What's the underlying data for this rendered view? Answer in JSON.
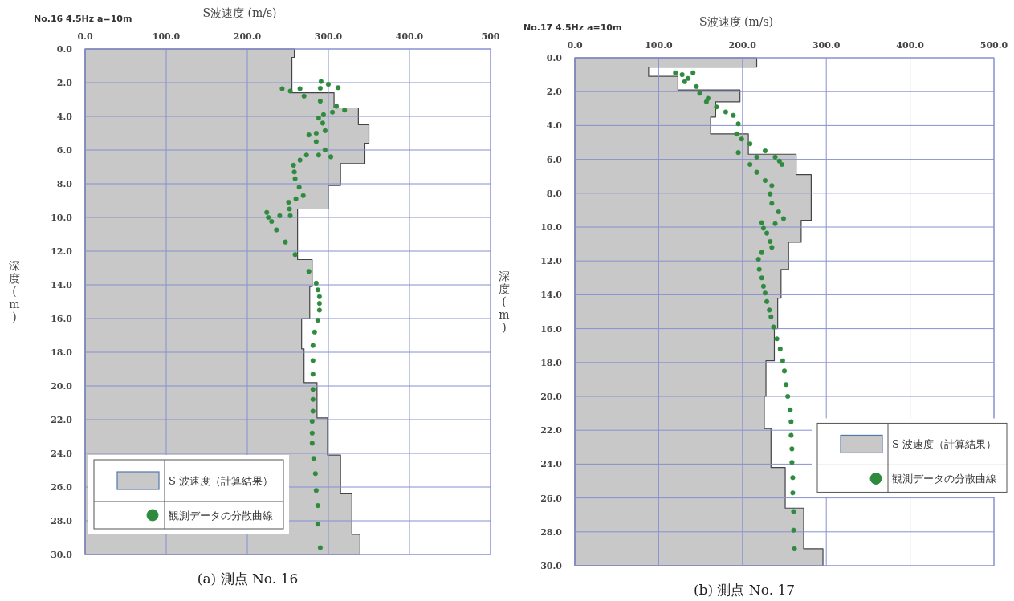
{
  "chart_data": [
    {
      "type": "area",
      "orientation": "horizontal",
      "title": "No.16 4.5Hz a=10m",
      "xlabel": "S波速度 (m/s)",
      "ylabel": "深度 (m)",
      "annotations": [
        "(a) 測点 No. 16"
      ],
      "xlim": [
        0,
        500
      ],
      "xticks": [
        {
          "value": 0,
          "label": "0.0"
        },
        {
          "value": 100,
          "label": "100.0"
        },
        {
          "value": 200,
          "label": "200.0"
        },
        {
          "value": 300,
          "label": "300.0"
        },
        {
          "value": 400,
          "label": "400.0"
        },
        500
      ],
      "ylim": [
        30,
        0
      ],
      "yticks": [
        {
          "value": 0,
          "label": "0.0"
        },
        {
          "value": 2,
          "label": "2.0"
        },
        {
          "value": 4,
          "label": "4.0"
        },
        {
          "value": 6,
          "label": "6.0"
        },
        {
          "value": 8,
          "label": "8.0"
        },
        {
          "value": 10,
          "label": "10.0"
        },
        {
          "value": 12,
          "label": "12.0"
        },
        {
          "value": 14,
          "label": "14.0"
        },
        {
          "value": 16,
          "label": "16.0"
        },
        {
          "value": 18,
          "label": "18.0"
        },
        {
          "value": 20,
          "label": "20.0"
        },
        {
          "value": 22,
          "label": "22.0"
        },
        {
          "value": 24,
          "label": "24.0"
        },
        {
          "value": 26,
          "label": "26.0"
        },
        {
          "value": 28,
          "label": "28.0"
        },
        {
          "value": 30,
          "label": "30.0"
        }
      ],
      "grid": true,
      "legend": "bottom left",
      "series": [
        {
          "name": "S 波速度（計算結果）",
          "color": "#c8c8c8",
          "x": [
            0,
            0.5,
            0.5,
            2.6,
            2.6,
            3.5,
            3.5,
            4.5,
            4.5,
            5.6,
            5.6,
            6.8,
            6.8,
            8.1,
            8.1,
            9.5,
            9.5,
            12.5,
            12.5,
            14.1,
            14.1,
            16,
            16,
            17.8,
            17.8,
            19.8,
            19.8,
            21.9,
            21.9,
            24.1,
            24.1,
            26.4,
            26.4,
            28.8,
            28.8,
            30
          ],
          "values": [
            258,
            258,
            255,
            255,
            307,
            307,
            337,
            337,
            350,
            350,
            345,
            345,
            315,
            315,
            300,
            300,
            262,
            262,
            280,
            280,
            277,
            277,
            267,
            267,
            270,
            270,
            286,
            286,
            299,
            299,
            315,
            315,
            329,
            329,
            339,
            339
          ]
        },
        {
          "type": "scatter",
          "name": "観測データの分散曲線",
          "color": "#2e8b3e",
          "marker": "circle",
          "x": [
            1.93,
            2.1,
            2.3,
            2.33,
            2.36,
            2.36,
            2.5,
            2.8,
            3.1,
            3.4,
            3.63,
            3.75,
            3.9,
            4.1,
            4.4,
            4.85,
            5.0,
            5.1,
            5.5,
            6.0,
            6.4,
            6.3,
            6.3,
            6.6,
            6.9,
            7.3,
            7.7,
            8.2,
            8.7,
            8.9,
            9.1,
            9.5,
            9.9,
            9.9,
            9.7,
            10.0,
            10.24,
            10.74,
            11.46,
            12.2,
            13.2,
            13.9,
            14.3,
            14.7,
            15.1,
            15.5,
            16.1,
            16.8,
            17.6,
            18.5,
            19.3,
            20.2,
            20.8,
            21.5,
            22.1,
            22.8,
            23.4,
            24.3,
            25.2,
            26.2,
            27.1,
            28.2,
            29.6
          ],
          "values": [
            291,
            300,
            312,
            290,
            265,
            243,
            253,
            270,
            290,
            310,
            320,
            305,
            294,
            288,
            293,
            296,
            285,
            276,
            285,
            296,
            303,
            288,
            273,
            265,
            257,
            258,
            259,
            264,
            269,
            260,
            251,
            252,
            253,
            240,
            224,
            226,
            230,
            236,
            247,
            259,
            276,
            285,
            287,
            289,
            289,
            289,
            287,
            283,
            281,
            281,
            281,
            281,
            281,
            281,
            280,
            280,
            280,
            282,
            284,
            285,
            287,
            287,
            290
          ]
        }
      ]
    },
    {
      "type": "area",
      "orientation": "horizontal",
      "title": "No.17 4.5Hz a=10m",
      "xlabel": "S波速度 (m/s)",
      "ylabel": "深度 (m)",
      "annotations": [
        "(b) 測点 No. 17"
      ],
      "xlim": [
        0,
        500
      ],
      "xticks": [
        {
          "value": 0,
          "label": "0.0"
        },
        {
          "value": 100,
          "label": "100.0"
        },
        {
          "value": 200,
          "label": "200.0"
        },
        {
          "value": 300,
          "label": "300.0"
        },
        {
          "value": 400,
          "label": "400.0"
        },
        {
          "value": 500,
          "label": "500.0"
        }
      ],
      "ylim": [
        30,
        0
      ],
      "yticks": [
        {
          "value": 0,
          "label": "0.0"
        },
        {
          "value": 2,
          "label": "2.0"
        },
        {
          "value": 4,
          "label": "4.0"
        },
        {
          "value": 6,
          "label": "6.0"
        },
        {
          "value": 8,
          "label": "8.0"
        },
        {
          "value": 10,
          "label": "10.0"
        },
        {
          "value": 12,
          "label": "12.0"
        },
        {
          "value": 14,
          "label": "14.0"
        },
        {
          "value": 16,
          "label": "16.0"
        },
        {
          "value": 18,
          "label": "18.0"
        },
        {
          "value": 20,
          "label": "20.0"
        },
        {
          "value": 22,
          "label": "22.0"
        },
        {
          "value": 24,
          "label": "24.0"
        },
        {
          "value": 26,
          "label": "26.0"
        },
        {
          "value": 28,
          "label": "28.0"
        },
        {
          "value": 30,
          "label": "30.0"
        }
      ],
      "grid": true,
      "legend": "right",
      "series": [
        {
          "name": "S 波速度（計算結果）",
          "color": "#c8c8c8",
          "x": [
            0,
            0.55,
            0.55,
            1.1,
            1.1,
            1.9,
            1.9,
            2.6,
            2.6,
            3.5,
            3.5,
            4.5,
            4.5,
            5.7,
            5.7,
            6.9,
            6.9,
            9.6,
            9.6,
            10.9,
            10.9,
            12.5,
            12.5,
            14.2,
            14.2,
            16,
            16,
            17.9,
            17.9,
            20,
            20,
            21.9,
            21.9,
            24.2,
            24.2,
            26.6,
            26.6,
            29,
            29,
            30
          ],
          "values": [
            217,
            217,
            88,
            88,
            123,
            123,
            197,
            197,
            168,
            168,
            162,
            162,
            207,
            207,
            264,
            264,
            282,
            282,
            270,
            270,
            255,
            255,
            246,
            246,
            242,
            242,
            238,
            238,
            228,
            228,
            226,
            226,
            234,
            234,
            251,
            251,
            273,
            273,
            296,
            296
          ]
        },
        {
          "type": "scatter",
          "name": "観測データの分散曲線",
          "color": "#2e8b3e",
          "marker": "circle",
          "x": [
            0.89,
            0.89,
            1.0,
            1.22,
            1.41,
            1.7,
            2.1,
            2.4,
            2.6,
            2.9,
            3.2,
            3.4,
            3.9,
            4.5,
            4.8,
            5.08,
            5.5,
            5.6,
            5.87,
            5.87,
            6.1,
            6.3,
            6.3,
            6.76,
            7.25,
            7.55,
            8.04,
            8.6,
            9.1,
            9.5,
            9.8,
            9.74,
            10.07,
            10.36,
            10.85,
            11.2,
            11.5,
            11.9,
            12.5,
            13.0,
            13.5,
            13.9,
            14.4,
            14.9,
            15.3,
            15.9,
            16.6,
            17.2,
            17.9,
            18.5,
            19.3,
            20.0,
            20.8,
            21.5,
            22.3,
            23.1,
            23.9,
            24.8,
            25.7,
            26.8,
            27.9,
            29.0
          ],
          "values": [
            141,
            120,
            128,
            135,
            131,
            145,
            149,
            159,
            157,
            169,
            180,
            189,
            195,
            193,
            199,
            209,
            227,
            195,
            217,
            239,
            244,
            247,
            209,
            217,
            227,
            235,
            233,
            235,
            243,
            249,
            239,
            223,
            225,
            229,
            233,
            235,
            223,
            219,
            220,
            223,
            225,
            227,
            229,
            232,
            234,
            237,
            241,
            245,
            248,
            250,
            252,
            254,
            257,
            258,
            258,
            259,
            259,
            260,
            260,
            261,
            261,
            262
          ]
        }
      ]
    }
  ]
}
